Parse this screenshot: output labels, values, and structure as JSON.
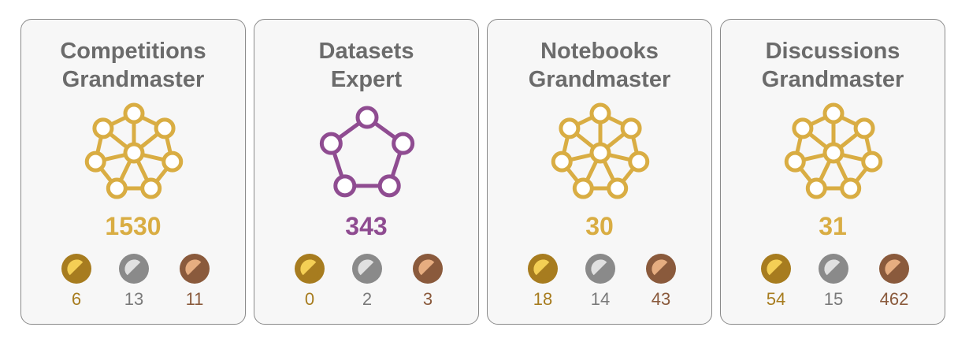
{
  "colors": {
    "grandmaster": "#d9ad43",
    "expert": "#8f4c91",
    "title": "#6b6b6b",
    "gold_light": "#f4cf55",
    "gold_dark": "#a77c1f",
    "silver_light": "#e0e0e0",
    "silver_dark": "#8a8a8a",
    "bronze_light": "#e6ad80",
    "bronze_dark": "#8a5a3c"
  },
  "cards": [
    {
      "category": "Competitions",
      "tier": "Grandmaster",
      "emblem": "grandmaster-network-icon",
      "points": "1530",
      "medals": {
        "gold": "6",
        "silver": "13",
        "bronze": "11"
      }
    },
    {
      "category": "Datasets",
      "tier": "Expert",
      "emblem": "expert-pentagon-icon",
      "points": "343",
      "medals": {
        "gold": "0",
        "silver": "2",
        "bronze": "3"
      }
    },
    {
      "category": "Notebooks",
      "tier": "Grandmaster",
      "emblem": "grandmaster-network-icon",
      "points": "30",
      "medals": {
        "gold": "18",
        "silver": "14",
        "bronze": "43"
      }
    },
    {
      "category": "Discussions",
      "tier": "Grandmaster",
      "emblem": "grandmaster-network-icon",
      "points": "31",
      "medals": {
        "gold": "54",
        "silver": "15",
        "bronze": "462"
      }
    }
  ]
}
